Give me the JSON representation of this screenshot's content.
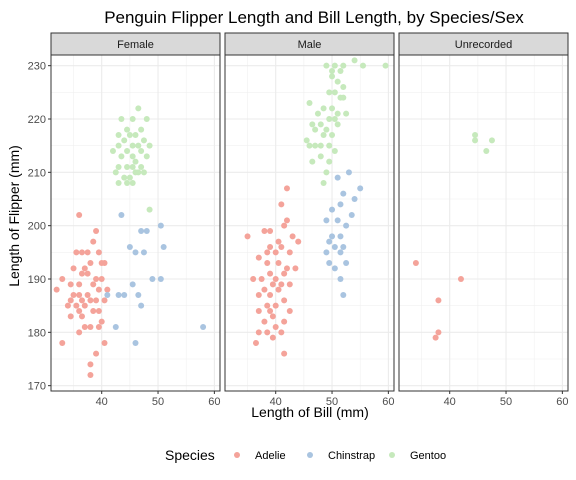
{
  "chart_data": {
    "type": "scatter",
    "title": "Penguin Flipper Length and Bill Length, by Species/Sex",
    "xlabel": "Length of Bill (mm)",
    "ylabel": "Length of Flipper (mm)",
    "xlim": [
      31,
      61
    ],
    "ylim": [
      169,
      232
    ],
    "x_ticks": [
      40,
      50,
      60
    ],
    "y_ticks": [
      170,
      180,
      190,
      200,
      210,
      220,
      230
    ],
    "grid": true,
    "legend": {
      "title": "Species",
      "position": "bottom",
      "entries": [
        {
          "name": "Adelie",
          "color": "#F4A39A"
        },
        {
          "name": "Chinstrap",
          "color": "#A9C4E0"
        },
        {
          "name": "Gentoo",
          "color": "#C6E9BC"
        }
      ]
    },
    "facets": [
      {
        "label": "Female",
        "series": [
          {
            "name": "Adelie",
            "points": [
              [
                36.0,
                202
              ],
              [
                38.5,
                197
              ],
              [
                39.0,
                199
              ],
              [
                37.5,
                195
              ],
              [
                35.5,
                195
              ],
              [
                36.5,
                195
              ],
              [
                39.5,
                195
              ],
              [
                40.0,
                193
              ],
              [
                40.5,
                193
              ],
              [
                38.0,
                193
              ],
              [
                36.5,
                191
              ],
              [
                35.0,
                192
              ],
              [
                37.0,
                192
              ],
              [
                37.5,
                191
              ],
              [
                39.0,
                190
              ],
              [
                40.0,
                190
              ],
              [
                33.0,
                190
              ],
              [
                34.5,
                189
              ],
              [
                36.0,
                189
              ],
              [
                38.5,
                189
              ],
              [
                39.5,
                188
              ],
              [
                41.0,
                188
              ],
              [
                32.0,
                188
              ],
              [
                35.0,
                187
              ],
              [
                36.0,
                187
              ],
              [
                37.5,
                187
              ],
              [
                34.5,
                186
              ],
              [
                36.5,
                186
              ],
              [
                38.0,
                186
              ],
              [
                39.0,
                186
              ],
              [
                40.5,
                186
              ],
              [
                34.0,
                185
              ],
              [
                35.5,
                185
              ],
              [
                37.0,
                185
              ],
              [
                38.5,
                184
              ],
              [
                36.0,
                184
              ],
              [
                39.5,
                184
              ],
              [
                34.5,
                183
              ],
              [
                36.5,
                183
              ],
              [
                40.0,
                182
              ],
              [
                37.0,
                181
              ],
              [
                38.0,
                181
              ],
              [
                39.5,
                181
              ],
              [
                36.0,
                180
              ],
              [
                40.5,
                178
              ],
              [
                33.0,
                178
              ],
              [
                39.0,
                176
              ],
              [
                38.0,
                174
              ],
              [
                38.0,
                172
              ]
            ]
          },
          {
            "name": "Chinstrap",
            "points": [
              [
                43.5,
                202
              ],
              [
                47.0,
                199
              ],
              [
                48.0,
                199
              ],
              [
                50.5,
                200
              ],
              [
                51.0,
                196
              ],
              [
                45.0,
                196
              ],
              [
                46.0,
                195
              ],
              [
                47.5,
                195
              ],
              [
                50.5,
                190
              ],
              [
                49.0,
                190
              ],
              [
                45.5,
                189
              ],
              [
                43.0,
                187
              ],
              [
                44.0,
                187
              ],
              [
                41.0,
                187
              ],
              [
                46.5,
                187
              ],
              [
                47.0,
                185
              ],
              [
                42.5,
                181
              ],
              [
                58.0,
                181
              ],
              [
                46.0,
                178
              ]
            ]
          },
          {
            "name": "Gentoo",
            "points": [
              [
                46.5,
                222
              ],
              [
                45.5,
                220
              ],
              [
                43.5,
                220
              ],
              [
                44.5,
                218
              ],
              [
                47.0,
                218
              ],
              [
                48.0,
                220
              ],
              [
                43.0,
                217
              ],
              [
                45.0,
                217
              ],
              [
                46.0,
                217
              ],
              [
                47.5,
                216
              ],
              [
                44.0,
                216
              ],
              [
                43.0,
                215
              ],
              [
                45.5,
                215
              ],
              [
                46.5,
                215
              ],
              [
                48.5,
                215
              ],
              [
                42.0,
                214
              ],
              [
                44.5,
                214
              ],
              [
                47.0,
                214
              ],
              [
                43.5,
                213
              ],
              [
                45.5,
                213
              ],
              [
                46.0,
                212
              ],
              [
                48.0,
                213
              ],
              [
                43.0,
                211
              ],
              [
                44.5,
                211
              ],
              [
                45.5,
                211
              ],
              [
                46.5,
                210
              ],
              [
                47.5,
                210
              ],
              [
                42.5,
                210
              ],
              [
                44.0,
                209
              ],
              [
                45.0,
                209
              ],
              [
                43.0,
                208
              ],
              [
                44.5,
                208
              ],
              [
                45.5,
                208
              ],
              [
                46.0,
                210
              ],
              [
                47.0,
                211
              ],
              [
                48.5,
                203
              ]
            ]
          }
        ]
      },
      {
        "label": "Male",
        "series": [
          {
            "name": "Adelie",
            "points": [
              [
                42.0,
                207
              ],
              [
                41.0,
                204
              ],
              [
                42.0,
                201
              ],
              [
                41.5,
                200
              ],
              [
                39.0,
                199
              ],
              [
                38.0,
                199
              ],
              [
                43.0,
                198
              ],
              [
                44.0,
                197
              ],
              [
                40.5,
                197
              ],
              [
                35.0,
                198
              ],
              [
                39.0,
                196
              ],
              [
                41.0,
                196
              ],
              [
                42.5,
                195
              ],
              [
                38.5,
                195
              ],
              [
                40.0,
                195
              ],
              [
                37.0,
                194
              ],
              [
                38.5,
                193
              ],
              [
                40.5,
                193
              ],
              [
                42.0,
                192
              ],
              [
                43.5,
                192
              ],
              [
                39.0,
                191
              ],
              [
                41.5,
                191
              ],
              [
                36.0,
                190
              ],
              [
                37.5,
                190
              ],
              [
                40.0,
                190
              ],
              [
                41.0,
                189
              ],
              [
                39.5,
                189
              ],
              [
                42.5,
                189
              ],
              [
                38.0,
                188
              ],
              [
                40.5,
                188
              ],
              [
                37.0,
                187
              ],
              [
                39.0,
                187
              ],
              [
                41.5,
                186
              ],
              [
                38.5,
                185
              ],
              [
                40.0,
                185
              ],
              [
                37.0,
                184
              ],
              [
                39.5,
                183
              ],
              [
                41.5,
                182
              ],
              [
                38.0,
                182
              ],
              [
                40.0,
                181
              ],
              [
                37.0,
                180
              ],
              [
                38.5,
                180
              ],
              [
                41.0,
                180
              ],
              [
                39.5,
                179
              ],
              [
                36.5,
                178
              ],
              [
                41.5,
                176
              ],
              [
                42.5,
                184
              ],
              [
                39.0,
                184
              ]
            ]
          },
          {
            "name": "Chinstrap",
            "points": [
              [
                53.0,
                210
              ],
              [
                51.0,
                209
              ],
              [
                55.0,
                207
              ],
              [
                52.0,
                206
              ],
              [
                54.0,
                205
              ],
              [
                51.5,
                204
              ],
              [
                50.0,
                203
              ],
              [
                53.5,
                202
              ],
              [
                49.0,
                201
              ],
              [
                51.0,
                201
              ],
              [
                52.5,
                200
              ],
              [
                50.0,
                198
              ],
              [
                51.5,
                198
              ],
              [
                49.5,
                197
              ],
              [
                50.5,
                196
              ],
              [
                52.0,
                196
              ],
              [
                49.0,
                195
              ],
              [
                51.5,
                195
              ],
              [
                49.5,
                193
              ],
              [
                52.5,
                193
              ],
              [
                50.5,
                192
              ],
              [
                51.5,
                190
              ],
              [
                52.0,
                187
              ]
            ]
          },
          {
            "name": "Gentoo",
            "points": [
              [
                49.0,
                230
              ],
              [
                50.5,
                230
              ],
              [
                52.0,
                230
              ],
              [
                55.5,
                230
              ],
              [
                59.5,
                230
              ],
              [
                54.0,
                231
              ],
              [
                50.0,
                229
              ],
              [
                51.5,
                229
              ],
              [
                50.0,
                228
              ],
              [
                51.0,
                227
              ],
              [
                52.0,
                226
              ],
              [
                49.5,
                225
              ],
              [
                50.5,
                225
              ],
              [
                51.5,
                224
              ],
              [
                52.0,
                224
              ],
              [
                46.0,
                223
              ],
              [
                48.5,
                222
              ],
              [
                50.0,
                222
              ],
              [
                51.0,
                221
              ],
              [
                52.5,
                221
              ],
              [
                47.5,
                221
              ],
              [
                49.5,
                220
              ],
              [
                50.5,
                220
              ],
              [
                46.5,
                219
              ],
              [
                48.0,
                219
              ],
              [
                51.0,
                219
              ],
              [
                47.0,
                218
              ],
              [
                49.0,
                218
              ],
              [
                50.0,
                217
              ],
              [
                45.5,
                216
              ],
              [
                48.5,
                217
              ],
              [
                46.0,
                215
              ],
              [
                47.0,
                215
              ],
              [
                48.0,
                215
              ],
              [
                49.5,
                215
              ],
              [
                50.5,
                214
              ],
              [
                48.0,
                213
              ],
              [
                46.5,
                212
              ],
              [
                49.5,
                212
              ],
              [
                49.0,
                210
              ],
              [
                48.5,
                208
              ]
            ]
          }
        ]
      },
      {
        "label": "Unrecorded",
        "series": [
          {
            "name": "Adelie",
            "points": [
              [
                34.0,
                193
              ],
              [
                42.0,
                190
              ],
              [
                38.0,
                186
              ],
              [
                38.0,
                180
              ],
              [
                37.5,
                179
              ]
            ]
          },
          {
            "name": "Chinstrap",
            "points": []
          },
          {
            "name": "Gentoo",
            "points": [
              [
                44.5,
                217
              ],
              [
                44.5,
                216
              ],
              [
                47.5,
                216
              ],
              [
                46.5,
                214
              ]
            ]
          }
        ]
      }
    ]
  }
}
